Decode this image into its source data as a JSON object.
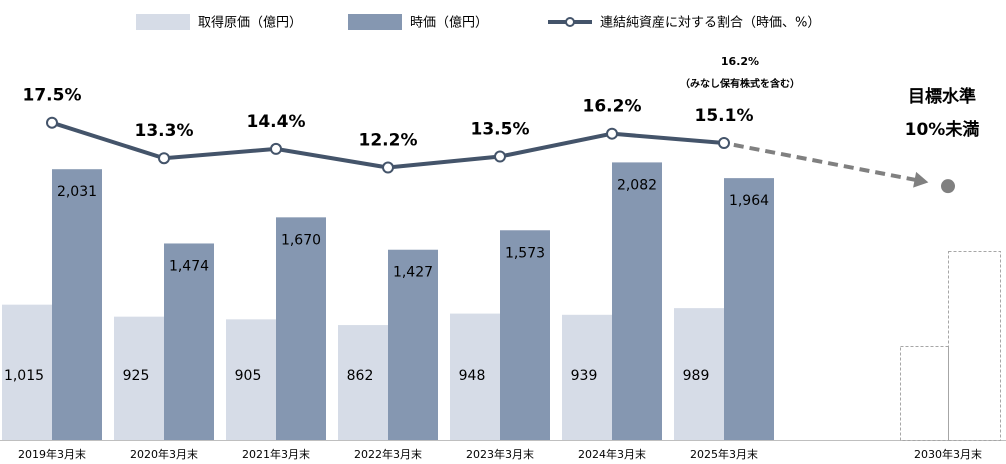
{
  "chart_data": {
    "type": "bar-line",
    "categories": [
      "2019年3月末",
      "2020年3月末",
      "2021年3月末",
      "2022年3月末",
      "2023年3月末",
      "2024年3月末",
      "2025年3月末",
      null,
      "2030年3月末"
    ],
    "series": [
      {
        "name": "取得原価（億円）",
        "color": "#d6dce7",
        "values": [
          1015,
          925,
          905,
          862,
          948,
          939,
          989,
          null,
          null
        ],
        "value_labels": [
          "1,015",
          "925",
          "905",
          "862",
          "948",
          "939",
          "989",
          null,
          null
        ]
      },
      {
        "name": "時価（億円）",
        "color": "#8597b1",
        "values": [
          2031,
          1474,
          1670,
          1427,
          1573,
          2082,
          1964,
          null,
          null
        ],
        "value_labels": [
          "2,031",
          "1,474",
          "1,670",
          "1,427",
          "1,573",
          "2,082",
          "1,964",
          null,
          null
        ]
      },
      {
        "name": "連結純資産に対する割合（時価、%）",
        "color": "#44546a",
        "axis": "y2",
        "values": [
          17.5,
          13.3,
          14.4,
          12.2,
          13.5,
          16.2,
          15.1,
          null,
          null
        ],
        "value_labels": [
          "17.5%",
          "13.3%",
          "14.4%",
          "12.2%",
          "13.5%",
          "16.2%",
          "15.1%",
          null,
          null
        ]
      }
    ],
    "target": {
      "value": 10,
      "title": "目標水準",
      "label": "10%未満",
      "color": "#808080"
    },
    "annotations": [
      {
        "value": 16.2,
        "label": "16.2%"
      },
      "（みなし保有株式を含む）"
    ],
    "ylim": [
      0,
      3300
    ],
    "y2lim": [
      -20,
      32
    ]
  }
}
